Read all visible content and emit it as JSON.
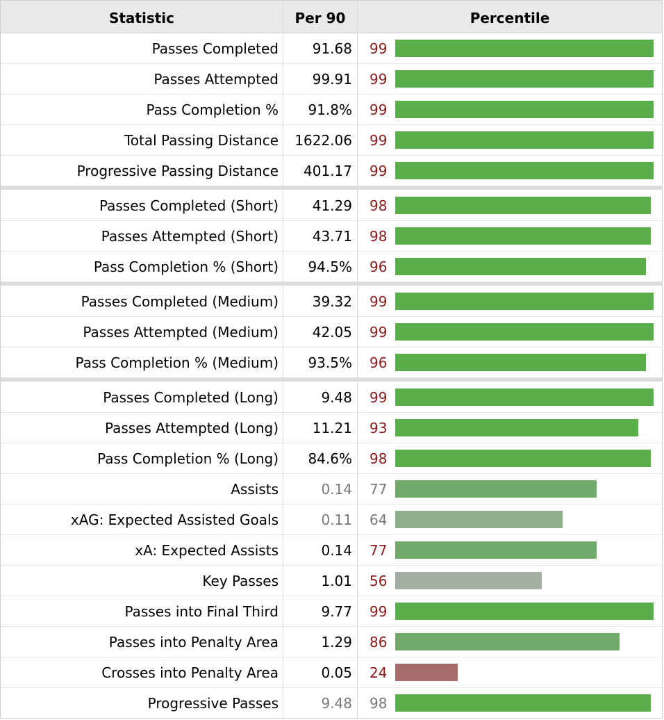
{
  "headers": {
    "statistic": "Statistic",
    "per90": "Per 90",
    "percentile": "Percentile"
  },
  "chart_data": {
    "type": "table",
    "columns": [
      "Statistic",
      "Per 90",
      "Percentile"
    ],
    "rows": [
      {
        "statistic": "Passes Completed",
        "per90": "91.68",
        "percentile": 99,
        "muted": false
      },
      {
        "statistic": "Passes Attempted",
        "per90": "99.91",
        "percentile": 99,
        "muted": false
      },
      {
        "statistic": "Pass Completion %",
        "per90": "91.8%",
        "percentile": 99,
        "muted": false
      },
      {
        "statistic": "Total Passing Distance",
        "per90": "1622.06",
        "percentile": 99,
        "muted": false
      },
      {
        "statistic": "Progressive Passing Distance",
        "per90": "401.17",
        "percentile": 99,
        "muted": false
      },
      {
        "statistic": "Passes Completed (Short)",
        "per90": "41.29",
        "percentile": 98,
        "muted": false
      },
      {
        "statistic": "Passes Attempted (Short)",
        "per90": "43.71",
        "percentile": 98,
        "muted": false
      },
      {
        "statistic": "Pass Completion % (Short)",
        "per90": "94.5%",
        "percentile": 96,
        "muted": false
      },
      {
        "statistic": "Passes Completed (Medium)",
        "per90": "39.32",
        "percentile": 99,
        "muted": false
      },
      {
        "statistic": "Passes Attempted (Medium)",
        "per90": "42.05",
        "percentile": 99,
        "muted": false
      },
      {
        "statistic": "Pass Completion % (Medium)",
        "per90": "93.5%",
        "percentile": 96,
        "muted": false
      },
      {
        "statistic": "Passes Completed (Long)",
        "per90": "9.48",
        "percentile": 99,
        "muted": false
      },
      {
        "statistic": "Passes Attempted (Long)",
        "per90": "11.21",
        "percentile": 93,
        "muted": false
      },
      {
        "statistic": "Pass Completion % (Long)",
        "per90": "84.6%",
        "percentile": 98,
        "muted": false
      },
      {
        "statistic": "Assists",
        "per90": "0.14",
        "percentile": 77,
        "muted": true
      },
      {
        "statistic": "xAG: Expected Assisted Goals",
        "per90": "0.11",
        "percentile": 64,
        "muted": true
      },
      {
        "statistic": "xA: Expected Assists",
        "per90": "0.14",
        "percentile": 77,
        "muted": false
      },
      {
        "statistic": "Key Passes",
        "per90": "1.01",
        "percentile": 56,
        "muted": false
      },
      {
        "statistic": "Passes into Final Third",
        "per90": "9.77",
        "percentile": 99,
        "muted": false
      },
      {
        "statistic": "Passes into Penalty Area",
        "per90": "1.29",
        "percentile": 86,
        "muted": false
      },
      {
        "statistic": "Crosses into Penalty Area",
        "per90": "0.05",
        "percentile": 24,
        "muted": false
      },
      {
        "statistic": "Progressive Passes",
        "per90": "9.48",
        "percentile": 98,
        "muted": true
      }
    ],
    "groups": [
      5,
      3,
      3,
      11
    ],
    "percentile_range": [
      0,
      100
    ]
  },
  "colors": {
    "percentile_text": "#8b1a1a",
    "muted_text": "#777777",
    "bar_high": "#5aaf4a",
    "bar_mid_high": "#72aa6c",
    "bar_mid": "#8fae8c",
    "bar_mid_low": "#a3afa2",
    "bar_low": "#a66c6c"
  }
}
